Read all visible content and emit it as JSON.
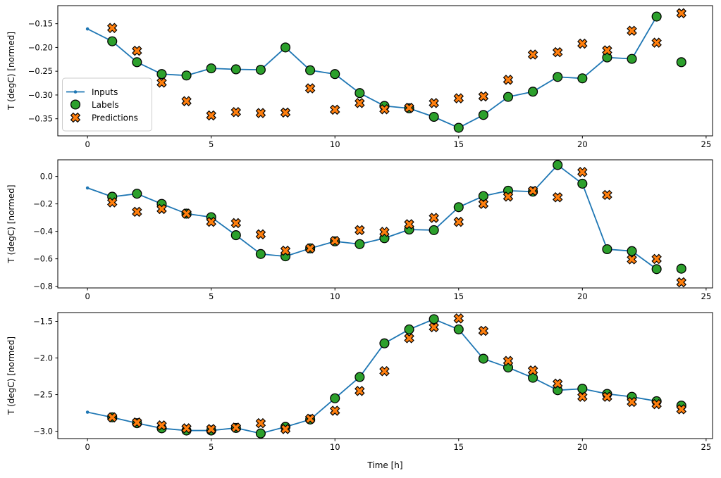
{
  "figure": {
    "background": "#ffffff",
    "xlabel": "Time [h]",
    "ylabel": "T (degC) [normed]",
    "colors": {
      "inputs_line": "#1f77b4",
      "labels_marker": "#2ca02c",
      "predictions_marker": "#ff7f0e",
      "marker_edge": "#000000",
      "spine": "#000000",
      "legend_border": "#cccccc",
      "legend_background": "#ffffff"
    },
    "legend": {
      "position": "center-left-of-top-subplot",
      "items": [
        {
          "label": "Inputs",
          "marker": "line-with-dot",
          "color": "#1f77b4"
        },
        {
          "label": "Labels",
          "marker": "circle",
          "color": "#2ca02c"
        },
        {
          "label": "Predictions",
          "marker": "thick-x",
          "color": "#ff7f0e"
        }
      ]
    }
  },
  "chart_data": [
    {
      "type": "line",
      "subplot": "top",
      "ylabel": "T (degC) [normed]",
      "xlabel": "",
      "xlim": [
        -1.2,
        25.26
      ],
      "ylim": [
        -0.386,
        -0.112
      ],
      "xticks": [
        0,
        5,
        10,
        15,
        20,
        25
      ],
      "xtick_labels": [
        "0",
        "5",
        "10",
        "15",
        "20",
        "25"
      ],
      "yticks": [
        -0.15,
        -0.2,
        -0.25,
        -0.3,
        -0.35
      ],
      "ytick_labels": [
        "−0.15",
        "−0.20",
        "−0.25",
        "−0.30",
        "−0.35"
      ],
      "grid": false,
      "legend_visible": true,
      "series": [
        {
          "name": "Inputs",
          "type": "line",
          "x": [
            0,
            1,
            2,
            3,
            4,
            5,
            6,
            7,
            8,
            9,
            10,
            11,
            12,
            13,
            14,
            15,
            16,
            17,
            18,
            19,
            20,
            21,
            22,
            23
          ],
          "values": [
            -0.161,
            -0.187,
            -0.231,
            -0.256,
            -0.259,
            -0.244,
            -0.246,
            -0.247,
            -0.2,
            -0.248,
            -0.256,
            -0.296,
            -0.323,
            -0.328,
            -0.346,
            -0.369,
            -0.342,
            -0.304,
            -0.293,
            -0.262,
            -0.265,
            -0.221,
            -0.224,
            -0.135
          ]
        },
        {
          "name": "Labels",
          "type": "scatter",
          "x": [
            1,
            2,
            3,
            4,
            5,
            6,
            7,
            8,
            9,
            10,
            11,
            12,
            13,
            14,
            15,
            16,
            17,
            18,
            19,
            20,
            21,
            22,
            23,
            24
          ],
          "values": [
            -0.187,
            -0.231,
            -0.256,
            -0.259,
            -0.244,
            -0.246,
            -0.247,
            -0.2,
            -0.248,
            -0.256,
            -0.296,
            -0.323,
            -0.328,
            -0.346,
            -0.369,
            -0.342,
            -0.304,
            -0.293,
            -0.262,
            -0.265,
            -0.221,
            -0.224,
            -0.135,
            -0.231
          ]
        },
        {
          "name": "Predictions",
          "type": "scatter",
          "x": [
            1,
            2,
            3,
            4,
            5,
            6,
            7,
            8,
            9,
            10,
            11,
            12,
            13,
            14,
            15,
            16,
            17,
            18,
            19,
            20,
            21,
            22,
            23,
            24
          ],
          "values": [
            -0.159,
            -0.207,
            -0.274,
            -0.313,
            -0.343,
            -0.336,
            -0.338,
            -0.337,
            -0.286,
            -0.331,
            -0.317,
            -0.33,
            -0.327,
            -0.317,
            -0.307,
            -0.303,
            -0.268,
            -0.215,
            -0.21,
            -0.192,
            -0.206,
            -0.165,
            -0.19,
            -0.128
          ]
        }
      ]
    },
    {
      "type": "line",
      "subplot": "middle",
      "ylabel": "T (degC) [normed]",
      "xlabel": "",
      "xlim": [
        -1.2,
        25.26
      ],
      "ylim": [
        -0.812,
        0.121
      ],
      "xticks": [
        0,
        5,
        10,
        15,
        20,
        25
      ],
      "xtick_labels": [
        "0",
        "5",
        "10",
        "15",
        "20",
        "25"
      ],
      "yticks": [
        0.0,
        -0.2,
        -0.4,
        -0.6,
        -0.8
      ],
      "ytick_labels": [
        "0.0",
        "−0.2",
        "−0.4",
        "−0.6",
        "−0.8"
      ],
      "grid": false,
      "legend_visible": false,
      "series": [
        {
          "name": "Inputs",
          "type": "line",
          "x": [
            0,
            1,
            2,
            3,
            4,
            5,
            6,
            7,
            8,
            9,
            10,
            11,
            12,
            13,
            14,
            15,
            16,
            17,
            18,
            19,
            20,
            21,
            22,
            23
          ],
          "values": [
            -0.084,
            -0.148,
            -0.126,
            -0.2,
            -0.271,
            -0.297,
            -0.428,
            -0.565,
            -0.582,
            -0.524,
            -0.473,
            -0.493,
            -0.45,
            -0.387,
            -0.391,
            -0.224,
            -0.143,
            -0.104,
            -0.111,
            0.083,
            -0.053,
            -0.53,
            -0.544,
            -0.675
          ]
        },
        {
          "name": "Labels",
          "type": "scatter",
          "x": [
            1,
            2,
            3,
            4,
            5,
            6,
            7,
            8,
            9,
            10,
            11,
            12,
            13,
            14,
            15,
            16,
            17,
            18,
            19,
            20,
            21,
            22,
            23,
            24
          ],
          "values": [
            -0.148,
            -0.126,
            -0.2,
            -0.271,
            -0.297,
            -0.428,
            -0.565,
            -0.582,
            -0.524,
            -0.473,
            -0.493,
            -0.45,
            -0.387,
            -0.391,
            -0.224,
            -0.143,
            -0.104,
            -0.111,
            0.083,
            -0.053,
            -0.53,
            -0.544,
            -0.675,
            -0.672
          ]
        },
        {
          "name": "Predictions",
          "type": "scatter",
          "x": [
            1,
            2,
            3,
            4,
            5,
            6,
            7,
            8,
            9,
            10,
            11,
            12,
            13,
            14,
            15,
            16,
            17,
            18,
            19,
            20,
            21,
            22,
            23,
            24
          ],
          "values": [
            -0.189,
            -0.258,
            -0.237,
            -0.271,
            -0.331,
            -0.34,
            -0.422,
            -0.541,
            -0.524,
            -0.47,
            -0.391,
            -0.404,
            -0.348,
            -0.302,
            -0.331,
            -0.2,
            -0.147,
            -0.105,
            -0.152,
            0.032,
            -0.135,
            -0.604,
            -0.601,
            -0.771
          ]
        }
      ]
    },
    {
      "type": "line",
      "subplot": "bottom",
      "ylabel": "T (degC) [normed]",
      "xlabel": "Time [h]",
      "xlim": [
        -1.2,
        25.26
      ],
      "ylim": [
        -3.1,
        -1.38
      ],
      "xticks": [
        0,
        5,
        10,
        15,
        20,
        25
      ],
      "xtick_labels": [
        "0",
        "5",
        "10",
        "15",
        "20",
        "25"
      ],
      "yticks": [
        -1.5,
        -2.0,
        -2.5,
        -3.0
      ],
      "ytick_labels": [
        "−1.5",
        "−2.0",
        "−2.5",
        "−3.0"
      ],
      "grid": false,
      "legend_visible": false,
      "series": [
        {
          "name": "Inputs",
          "type": "line",
          "x": [
            0,
            1,
            2,
            3,
            4,
            5,
            6,
            7,
            8,
            9,
            10,
            11,
            12,
            13,
            14,
            15,
            16,
            17,
            18,
            19,
            20,
            21,
            22,
            23
          ],
          "values": [
            -2.74,
            -2.81,
            -2.89,
            -2.96,
            -2.99,
            -2.99,
            -2.955,
            -3.03,
            -2.94,
            -2.84,
            -2.55,
            -2.26,
            -1.8,
            -1.61,
            -1.47,
            -1.61,
            -2.01,
            -2.13,
            -2.27,
            -2.44,
            -2.42,
            -2.49,
            -2.53,
            -2.59
          ]
        },
        {
          "name": "Labels",
          "type": "scatter",
          "x": [
            1,
            2,
            3,
            4,
            5,
            6,
            7,
            8,
            9,
            10,
            11,
            12,
            13,
            14,
            15,
            16,
            17,
            18,
            19,
            20,
            21,
            22,
            23,
            24
          ],
          "values": [
            -2.81,
            -2.89,
            -2.96,
            -2.99,
            -2.99,
            -2.955,
            -3.03,
            -2.94,
            -2.84,
            -2.55,
            -2.26,
            -1.8,
            -1.61,
            -1.47,
            -1.61,
            -2.01,
            -2.13,
            -2.27,
            -2.44,
            -2.42,
            -2.49,
            -2.53,
            -2.59,
            -2.65
          ]
        },
        {
          "name": "Predictions",
          "type": "scatter",
          "x": [
            1,
            2,
            3,
            4,
            5,
            6,
            7,
            8,
            9,
            10,
            11,
            12,
            13,
            14,
            15,
            16,
            17,
            18,
            19,
            20,
            21,
            22,
            23,
            24
          ],
          "values": [
            -2.81,
            -2.88,
            -2.92,
            -2.96,
            -2.97,
            -2.95,
            -2.89,
            -2.97,
            -2.83,
            -2.72,
            -2.45,
            -2.18,
            -1.73,
            -1.58,
            -1.46,
            -1.63,
            -2.04,
            -2.17,
            -2.35,
            -2.53,
            -2.53,
            -2.6,
            -2.63,
            -2.7
          ]
        }
      ]
    }
  ]
}
